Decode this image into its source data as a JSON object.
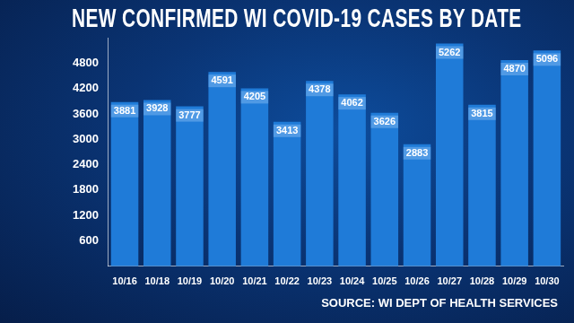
{
  "chart_data": {
    "type": "bar",
    "title": "NEW CONFIRMED WI COVID-19 CASES BY DATE",
    "annotations": [
      "SOURCE: WI DEPT OF HEALTH SERVICES"
    ],
    "categories": [
      "10/16",
      "10/18",
      "10/19",
      "10/20",
      "10/21",
      "10/22",
      "10/23",
      "10/24",
      "10/25",
      "10/26",
      "10/27",
      "10/28",
      "10/29",
      "10/30"
    ],
    "values": [
      3881,
      3928,
      3777,
      4591,
      4205,
      3413,
      4378,
      4062,
      3626,
      2883,
      5262,
      3815,
      4870,
      5096
    ],
    "color": "#1f7bd8",
    "ylim": [
      0,
      5400
    ],
    "yticks": [
      600,
      1200,
      1800,
      2400,
      3000,
      3600,
      4200,
      4800
    ],
    "grid": false,
    "data_labels": true
  }
}
